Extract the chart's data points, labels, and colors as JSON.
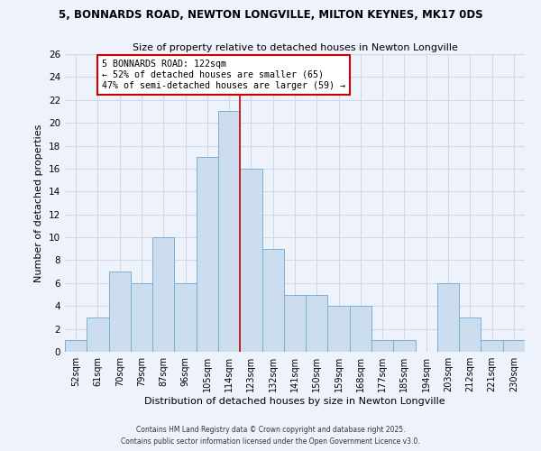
{
  "title_line1": "5, BONNARDS ROAD, NEWTON LONGVILLE, MILTON KEYNES, MK17 0DS",
  "title_line2": "Size of property relative to detached houses in Newton Longville",
  "xlabel": "Distribution of detached houses by size in Newton Longville",
  "ylabel": "Number of detached properties",
  "bin_labels": [
    "52sqm",
    "61sqm",
    "70sqm",
    "79sqm",
    "87sqm",
    "96sqm",
    "105sqm",
    "114sqm",
    "123sqm",
    "132sqm",
    "141sqm",
    "150sqm",
    "159sqm",
    "168sqm",
    "177sqm",
    "185sqm",
    "194sqm",
    "203sqm",
    "212sqm",
    "221sqm",
    "230sqm"
  ],
  "bar_heights": [
    1,
    3,
    7,
    6,
    10,
    6,
    17,
    21,
    16,
    9,
    5,
    5,
    4,
    4,
    1,
    1,
    0,
    6,
    3,
    1,
    1
  ],
  "bar_color": "#ccddf0",
  "bar_edge_color": "#7bafd4",
  "vline_color": "#cc0000",
  "annotation_title": "5 BONNARDS ROAD: 122sqm",
  "annotation_line1": "← 52% of detached houses are smaller (65)",
  "annotation_line2": "47% of semi-detached houses are larger (59) →",
  "annotation_box_color": "#ffffff",
  "annotation_box_edge": "#cc0000",
  "ylim": [
    0,
    26
  ],
  "yticks": [
    0,
    2,
    4,
    6,
    8,
    10,
    12,
    14,
    16,
    18,
    20,
    22,
    24,
    26
  ],
  "background_color": "#eef2fb",
  "grid_color": "#d0d8e8",
  "footer1": "Contains HM Land Registry data © Crown copyright and database right 2025.",
  "footer2": "Contains public sector information licensed under the Open Government Licence v3.0."
}
